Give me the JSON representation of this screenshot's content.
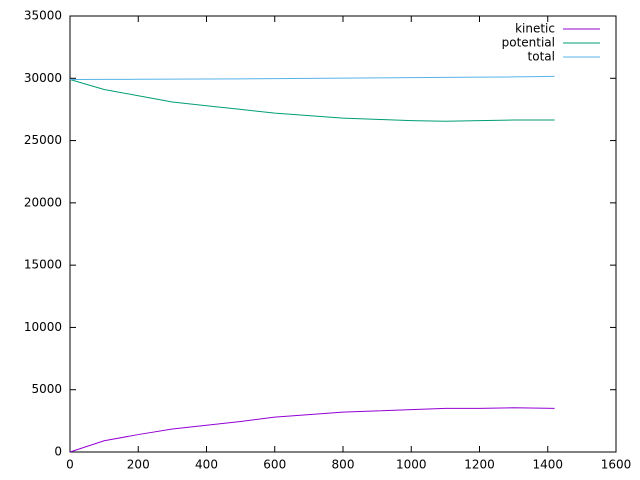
{
  "chart_data": {
    "type": "line",
    "x": [
      0,
      100,
      200,
      300,
      400,
      500,
      600,
      700,
      800,
      900,
      1000,
      1100,
      1200,
      1300,
      1420
    ],
    "series": [
      {
        "name": "kinetic",
        "color": "#9400d3",
        "values": [
          0,
          900,
          1400,
          1850,
          2150,
          2450,
          2800,
          3000,
          3200,
          3300,
          3400,
          3500,
          3500,
          3550,
          3500
        ]
      },
      {
        "name": "potential",
        "color": "#009e73",
        "values": [
          29900,
          29100,
          28600,
          28100,
          27800,
          27500,
          27200,
          27000,
          26800,
          26700,
          26600,
          26550,
          26600,
          26650,
          26650
        ]
      },
      {
        "name": "total",
        "color": "#56b4e9",
        "values": [
          29900,
          29910,
          29920,
          29930,
          29940,
          29950,
          29970,
          29990,
          30010,
          30030,
          30050,
          30070,
          30090,
          30110,
          30150
        ]
      }
    ],
    "xlim": [
      0,
      1600
    ],
    "xticks": [
      0,
      200,
      400,
      600,
      800,
      1000,
      1200,
      1400,
      1600
    ],
    "ylim": [
      0,
      35000
    ],
    "yticks": [
      0,
      5000,
      10000,
      15000,
      20000,
      25000,
      30000,
      35000
    ],
    "grid": false,
    "legend": "top-right"
  }
}
